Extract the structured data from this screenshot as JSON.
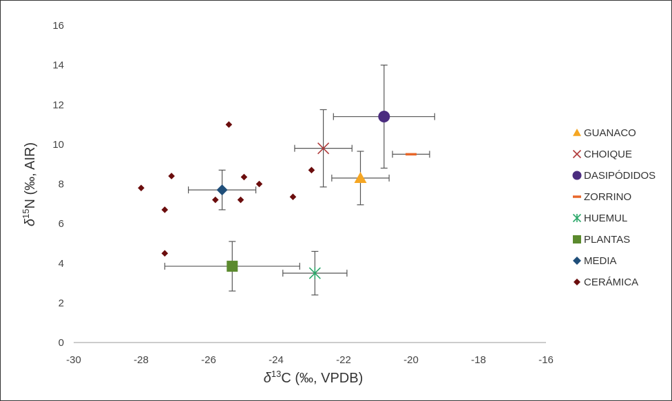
{
  "chart_data": {
    "type": "scatter",
    "title": "",
    "xlabel": {
      "prefix": "δ",
      "sup": "13",
      "rest": "C (‰, VPDB)"
    },
    "ylabel": {
      "prefix": "δ",
      "sup": "15",
      "rest": "N (‰, AIR)"
    },
    "xlim": [
      -30,
      -16
    ],
    "ylim": [
      0,
      16
    ],
    "x_ticks": [
      -30,
      -28,
      -26,
      -24,
      -22,
      -20,
      -18,
      -16
    ],
    "y_ticks": [
      0,
      2,
      4,
      6,
      8,
      10,
      12,
      14,
      16
    ],
    "grid": false,
    "legend_position": "right",
    "series": [
      {
        "name": "GUANACO",
        "marker": "triangle",
        "color": "#f5a623",
        "points": [
          {
            "x": -21.5,
            "y": 8.3,
            "xerr": 0.85,
            "yerr": 1.35
          }
        ]
      },
      {
        "name": "CHOIQUE",
        "marker": "x",
        "color": "#b03a3a",
        "points": [
          {
            "x": -22.6,
            "y": 9.8,
            "xerr": 0.85,
            "yerr": 1.95
          }
        ]
      },
      {
        "name": "DASIPÓDIDOS",
        "marker": "circle",
        "color": "#4b2c7f",
        "points": [
          {
            "x": -20.8,
            "y": 11.4,
            "xerr": 1.5,
            "yerr": 2.6
          }
        ]
      },
      {
        "name": "ZORRINO",
        "marker": "dash",
        "color": "#e8672a",
        "points": [
          {
            "x": -20.0,
            "y": 9.5,
            "xerr": 0.55,
            "yerr": 0.0
          }
        ]
      },
      {
        "name": "HUEMUL",
        "marker": "star",
        "color": "#2ca86a",
        "points": [
          {
            "x": -22.85,
            "y": 3.5,
            "xerr": 0.95,
            "yerr": 1.1
          }
        ]
      },
      {
        "name": "PLANTAS",
        "marker": "square",
        "color": "#5b8a2e",
        "points": [
          {
            "x": -25.3,
            "y": 3.85,
            "xerr": 2.0,
            "yerr": 1.25
          }
        ]
      },
      {
        "name": "MEDIA",
        "marker": "diamond",
        "color": "#1f4e79",
        "points": [
          {
            "x": -25.6,
            "y": 7.7,
            "xerr": 1.0,
            "yerr": 1.0
          }
        ]
      },
      {
        "name": "CERÁMICA",
        "marker": "diamond-small",
        "color": "#6b0d0d",
        "points": [
          {
            "x": -28.0,
            "y": 7.8
          },
          {
            "x": -27.3,
            "y": 6.7
          },
          {
            "x": -27.1,
            "y": 8.4
          },
          {
            "x": -27.3,
            "y": 4.5
          },
          {
            "x": -25.8,
            "y": 7.2
          },
          {
            "x": -25.4,
            "y": 11.0
          },
          {
            "x": -24.95,
            "y": 8.35
          },
          {
            "x": -25.05,
            "y": 7.2
          },
          {
            "x": -24.5,
            "y": 8.0
          },
          {
            "x": -23.5,
            "y": 7.35
          },
          {
            "x": -22.95,
            "y": 8.7
          }
        ]
      }
    ]
  }
}
